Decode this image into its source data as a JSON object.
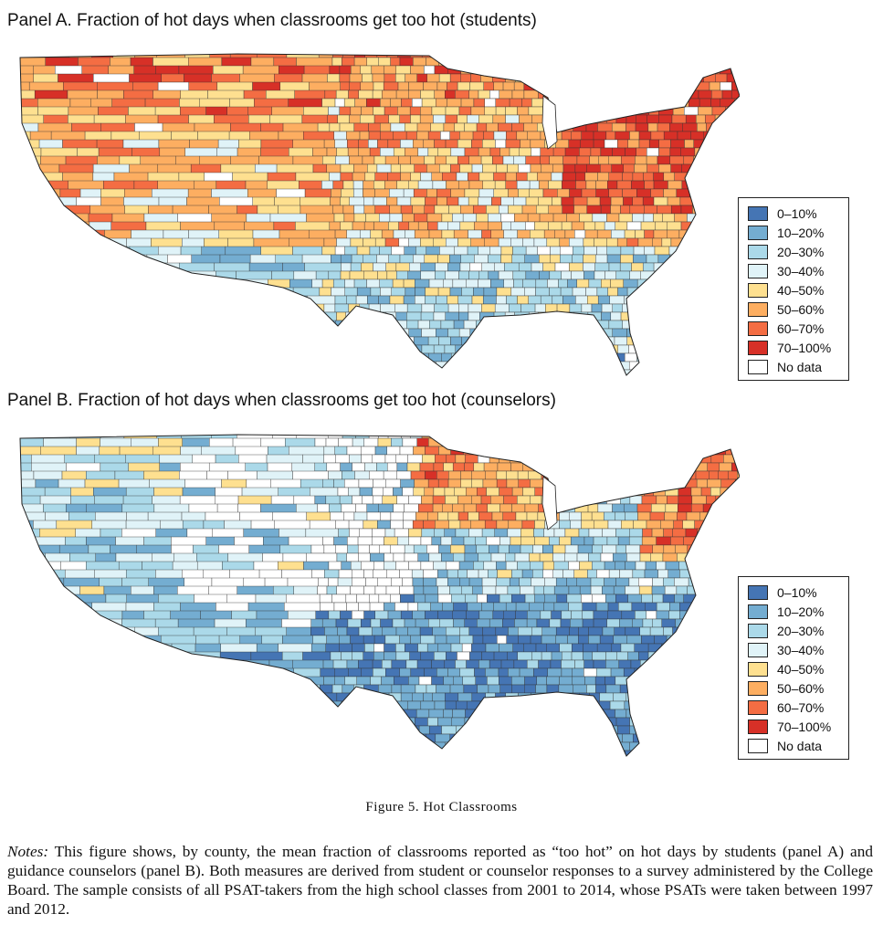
{
  "panel_a": {
    "title": "Panel A. Fraction of hot days when classrooms get too hot (students)"
  },
  "panel_b": {
    "title": "Panel B. Fraction of hot days when classrooms get too hot (counselors)"
  },
  "legend": {
    "items": [
      {
        "label": "0–10%",
        "color": "#4575b4"
      },
      {
        "label": "10–20%",
        "color": "#74add1"
      },
      {
        "label": "20–30%",
        "color": "#abd9e9"
      },
      {
        "label": "30–40%",
        "color": "#e0f3f8"
      },
      {
        "label": "40–50%",
        "color": "#fee090"
      },
      {
        "label": "50–60%",
        "color": "#fdae61"
      },
      {
        "label": "60–70%",
        "color": "#f46d43"
      },
      {
        "label": "70–100%",
        "color": "#d73027"
      },
      {
        "label": "No data",
        "color": "#ffffff"
      }
    ]
  },
  "caption": {
    "figure_label": "Figure 5. Hot Classrooms"
  },
  "notes": {
    "label": "Notes:",
    "text": " This figure shows, by county, the mean fraction of classrooms reported as “too hot” on hot days by students (panel A) and guidance counselors (panel B). Both measures are derived from student or counselor responses to a survey administered by the College Board. The sample consists of all PSAT-takers from the high school classes from 2001 to 2014, whose PSATs were taken between 1997 and 2012."
  }
}
